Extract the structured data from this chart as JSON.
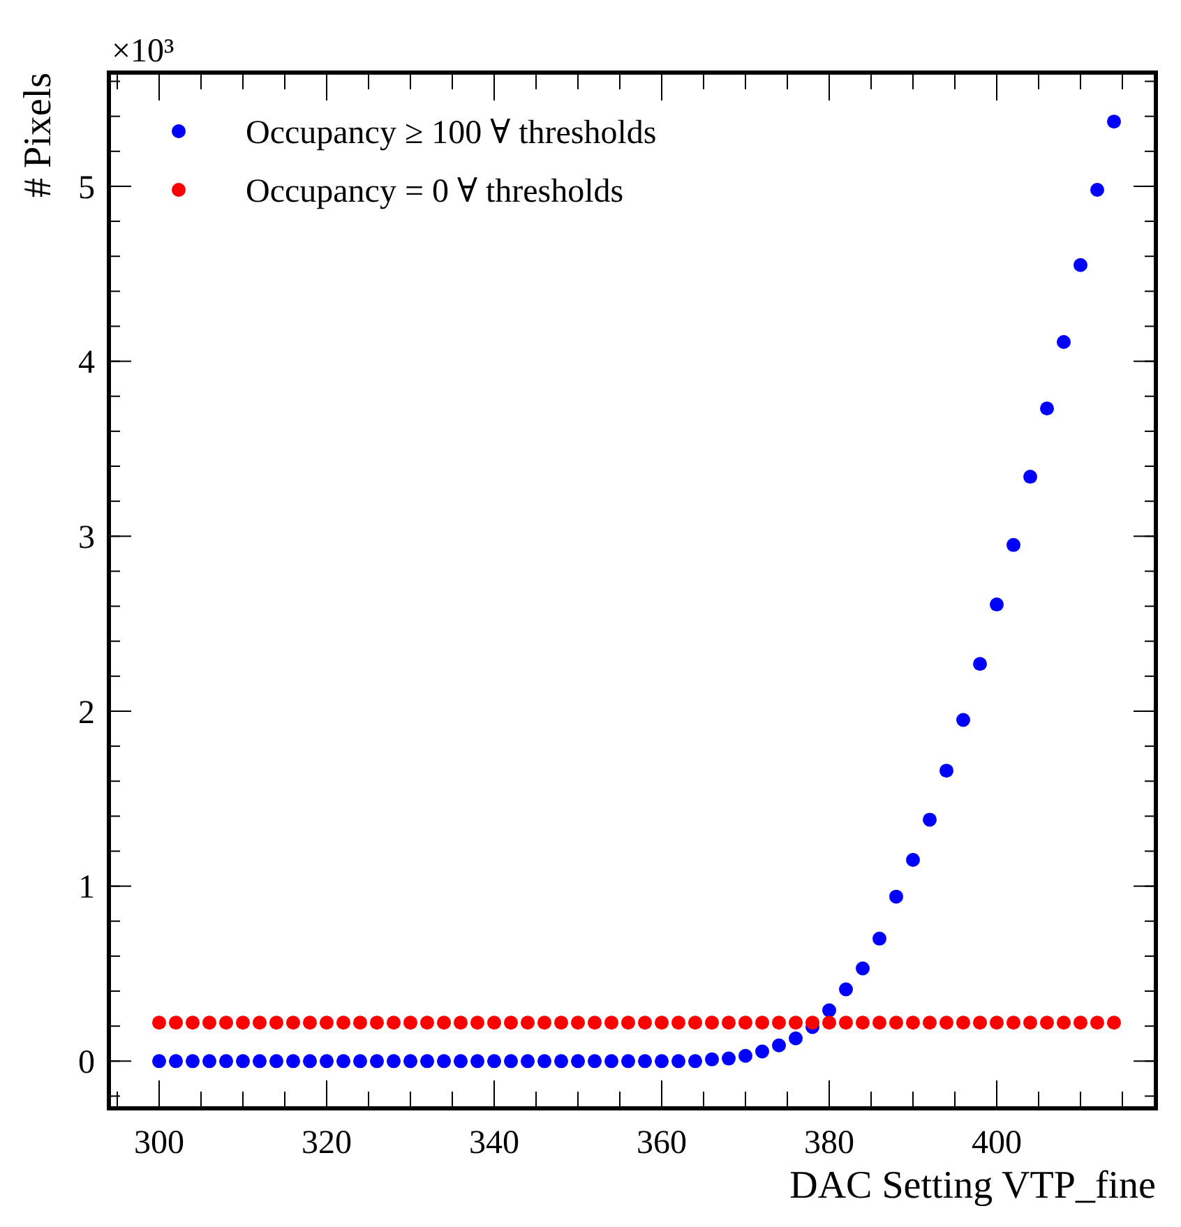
{
  "chart_data": {
    "type": "scatter",
    "xlabel": "DAC Setting VTP_fine",
    "ylabel": "# Pixels",
    "annotations": [
      "×10³"
    ],
    "x": [
      300,
      302,
      304,
      306,
      308,
      310,
      312,
      314,
      316,
      318,
      320,
      322,
      324,
      326,
      328,
      330,
      332,
      334,
      336,
      338,
      340,
      342,
      344,
      346,
      348,
      350,
      352,
      354,
      356,
      358,
      360,
      362,
      364,
      366,
      368,
      370,
      372,
      374,
      376,
      378,
      380,
      382,
      384,
      386,
      388,
      390,
      392,
      394,
      396,
      398,
      400,
      402,
      404,
      406,
      408,
      410,
      412,
      414
    ],
    "series": [
      {
        "name": "Occupancy ≥ 100 ∀ thresholds",
        "color": "#0000ff",
        "values": [
          0,
          0,
          0,
          0,
          0,
          0,
          0,
          0,
          0,
          0,
          0,
          0,
          0,
          0,
          0,
          0,
          0,
          0,
          0,
          0,
          0,
          0,
          0,
          0,
          0,
          0,
          0,
          0,
          0,
          0,
          0,
          0,
          0,
          0.01,
          0.015,
          0.03,
          0.055,
          0.09,
          0.13,
          0.195,
          0.29,
          0.41,
          0.53,
          0.7,
          0.94,
          1.15,
          1.38,
          1.66,
          1.95,
          2.27,
          2.61,
          2.95,
          3.34,
          3.73,
          4.11,
          4.55,
          4.98,
          5.37
        ]
      },
      {
        "name": "Occupancy = 0 ∀ thresholds",
        "color": "#ff0000",
        "values": [
          0.22,
          0.22,
          0.22,
          0.22,
          0.22,
          0.22,
          0.22,
          0.22,
          0.22,
          0.22,
          0.22,
          0.22,
          0.22,
          0.22,
          0.22,
          0.22,
          0.22,
          0.22,
          0.22,
          0.22,
          0.22,
          0.22,
          0.22,
          0.22,
          0.22,
          0.22,
          0.22,
          0.22,
          0.22,
          0.22,
          0.22,
          0.22,
          0.22,
          0.22,
          0.22,
          0.22,
          0.22,
          0.22,
          0.22,
          0.22,
          0.22,
          0.22,
          0.22,
          0.22,
          0.22,
          0.22,
          0.22,
          0.22,
          0.22,
          0.22,
          0.22,
          0.22,
          0.22,
          0.22,
          0.22,
          0.22,
          0.22,
          0.22
        ]
      }
    ],
    "xlim": [
      294,
      419
    ],
    "xticks": [
      300,
      320,
      340,
      360,
      380,
      400
    ],
    "ylim": [
      -0.27,
      5.65
    ],
    "yticks": [
      0,
      1,
      2,
      3,
      4,
      5
    ],
    "marker": "circle",
    "legend": "top left",
    "grid": false
  }
}
